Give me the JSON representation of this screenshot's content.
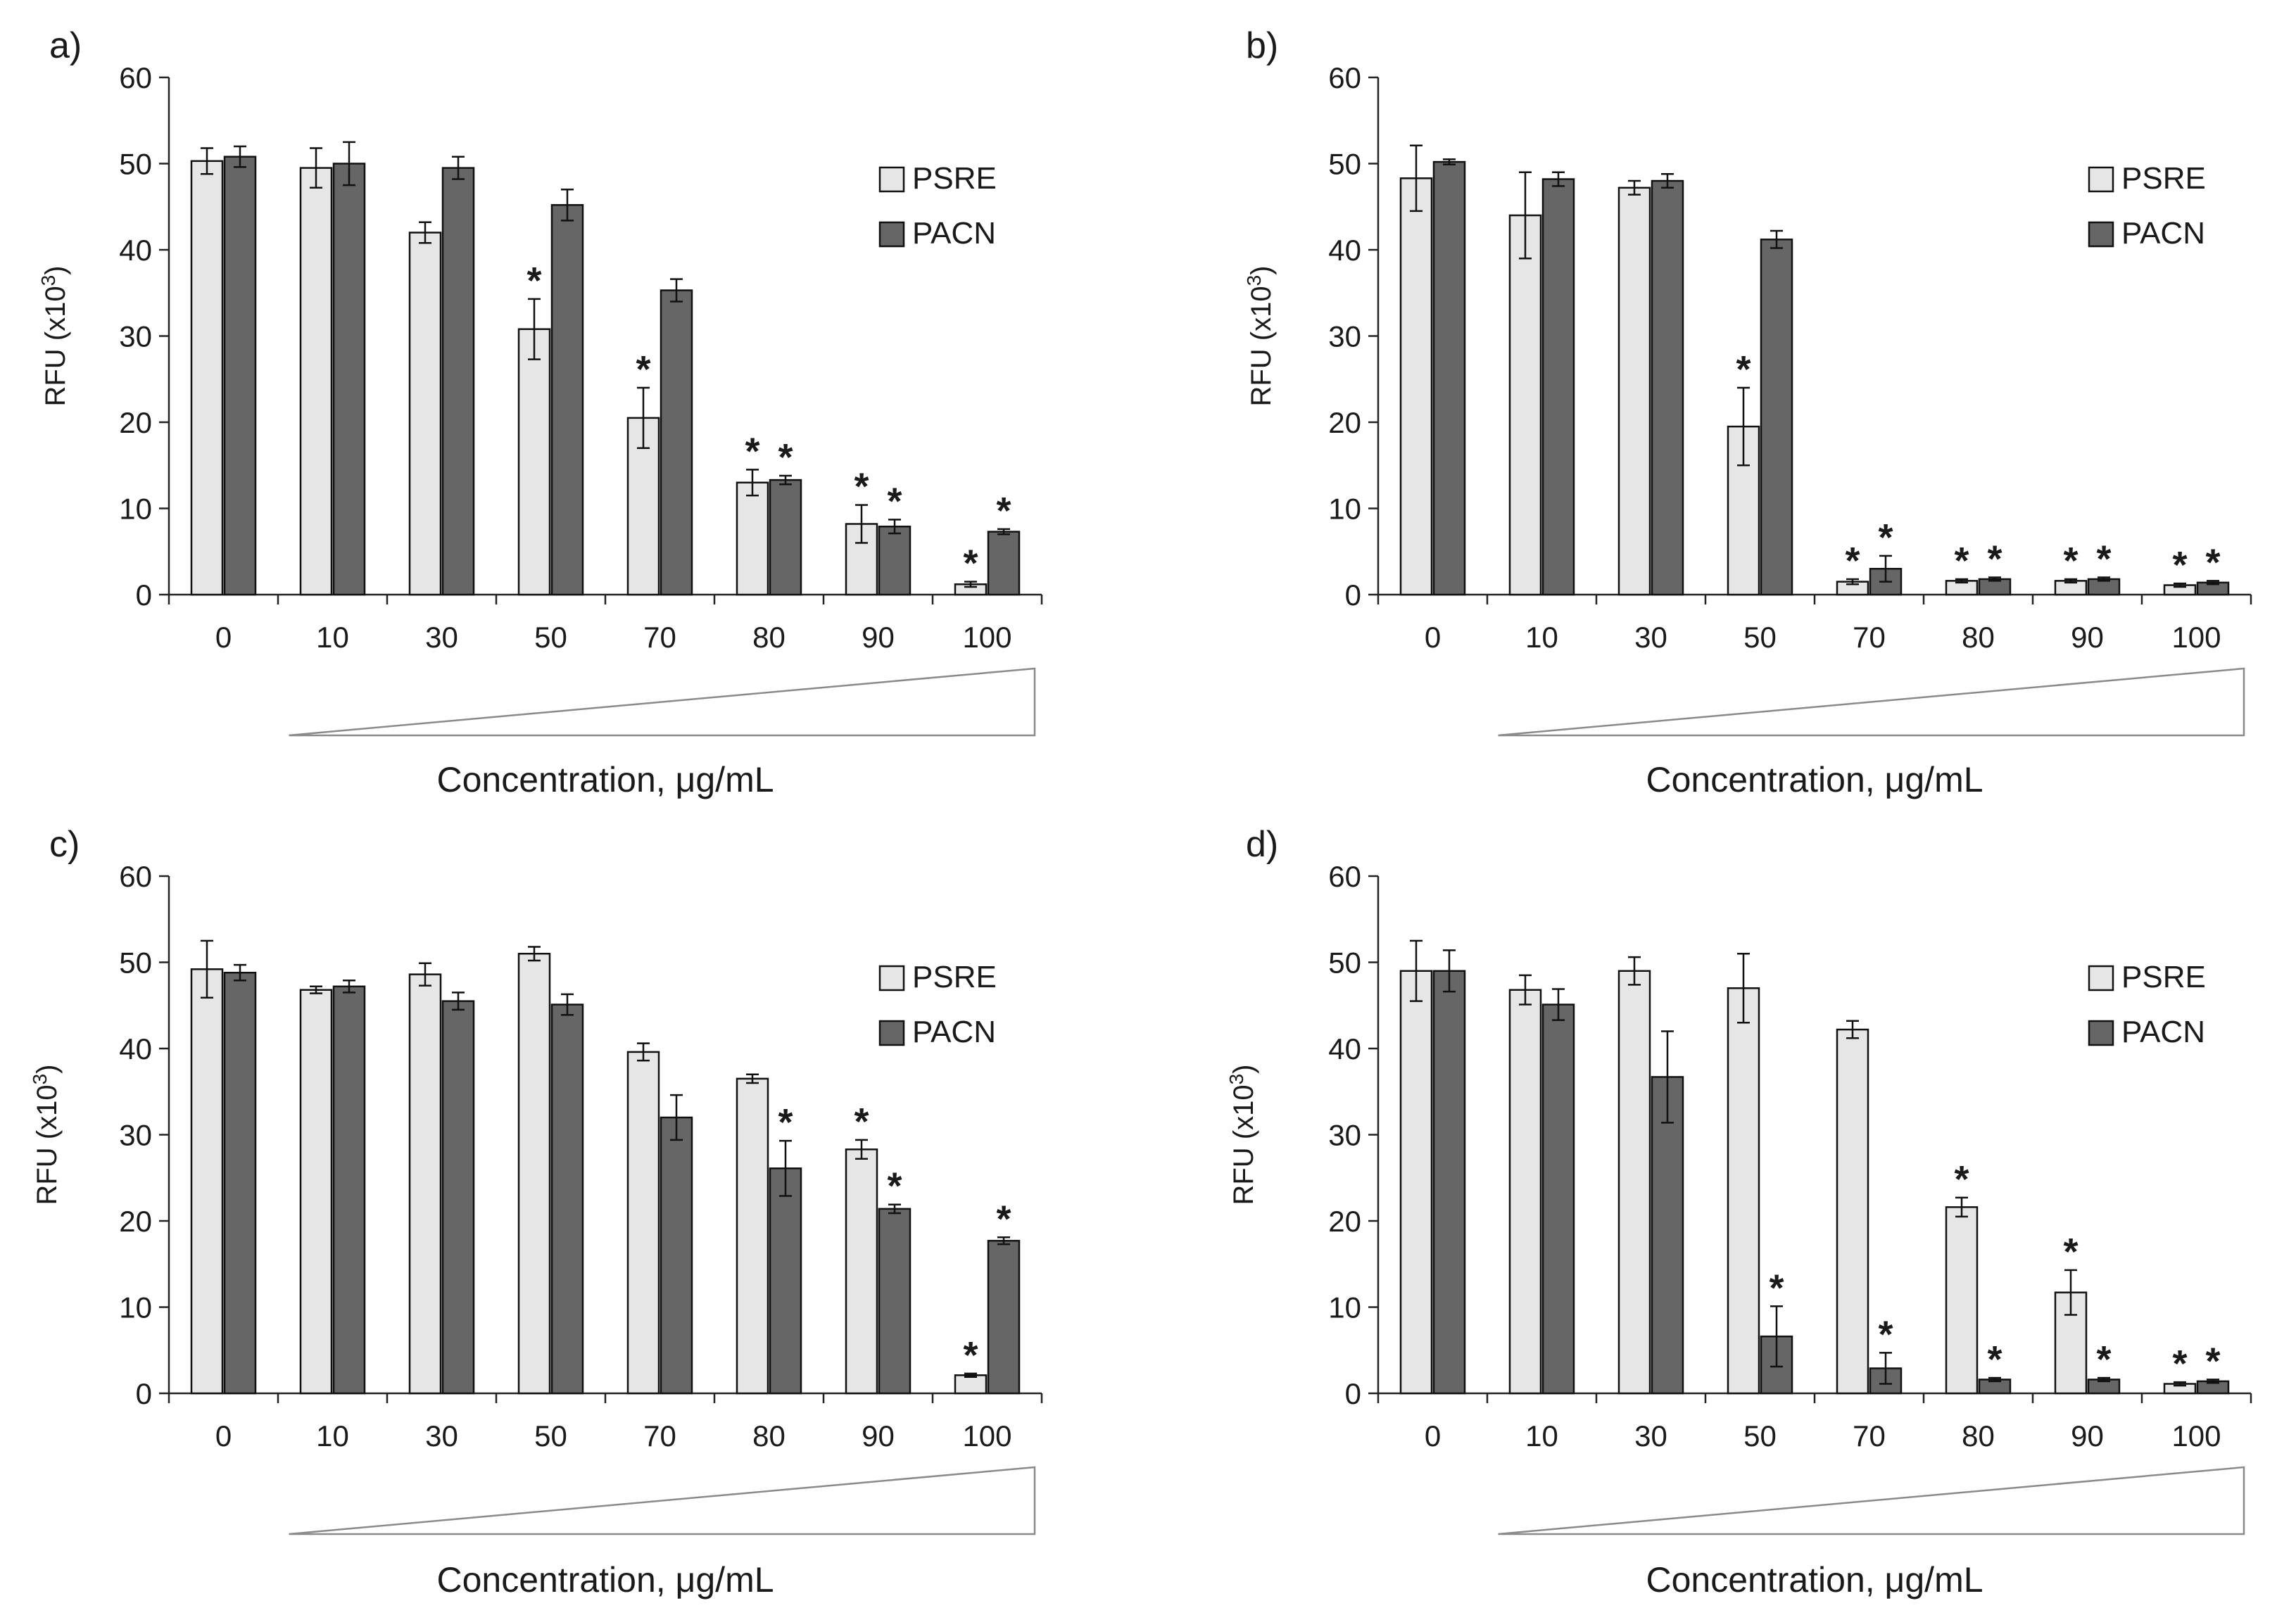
{
  "colors": {
    "psre": "#e6e6e6",
    "pacn": "#666666"
  },
  "chart_data": [
    {
      "type": "bar",
      "panel": "a)",
      "categories": [
        "0",
        "10",
        "30",
        "50",
        "70",
        "80",
        "90",
        "100"
      ],
      "ylabel": "RFU (x10",
      "ylabel_sup": "3",
      "ylabel_close": ")",
      "xlabel": "Concentration, μg/mL",
      "ylim": [
        0,
        60
      ],
      "yticks": [
        "0",
        "10",
        "20",
        "30",
        "40",
        "50",
        "60"
      ],
      "legend": [
        "PSRE",
        "PACN"
      ],
      "star": "*",
      "series": [
        {
          "name": "PSRE",
          "values": [
            50.3,
            49.5,
            42,
            30.8,
            20.5,
            13,
            8.2,
            1.2
          ],
          "errors": [
            1.5,
            2.3,
            1.2,
            3.5,
            3.5,
            1.5,
            2.2,
            0.3
          ],
          "sig": [
            false,
            false,
            false,
            true,
            true,
            true,
            true,
            true
          ]
        },
        {
          "name": "PACN",
          "values": [
            50.8,
            50,
            49.5,
            45.2,
            35.3,
            13.3,
            7.9,
            7.3
          ],
          "errors": [
            1.2,
            2.5,
            1.3,
            1.8,
            1.3,
            0.5,
            0.8,
            0.3
          ],
          "sig": [
            false,
            false,
            false,
            false,
            false,
            true,
            true,
            true
          ]
        }
      ]
    },
    {
      "type": "bar",
      "panel": "b)",
      "categories": [
        "0",
        "10",
        "30",
        "50",
        "70",
        "80",
        "90",
        "100"
      ],
      "ylabel": "RFU (x10",
      "ylabel_sup": "3",
      "ylabel_close": ")",
      "xlabel": "Concentration, μg/mL",
      "ylim": [
        0,
        60
      ],
      "yticks": [
        "0",
        "10",
        "20",
        "30",
        "40",
        "50",
        "60"
      ],
      "legend": [
        "PSRE",
        "PACN"
      ],
      "star": "*",
      "series": [
        {
          "name": "PSRE",
          "values": [
            48.3,
            44,
            47.2,
            19.5,
            1.5,
            1.6,
            1.6,
            1.1
          ],
          "errors": [
            3.8,
            5,
            0.8,
            4.5,
            0.3,
            0.2,
            0.2,
            0.2
          ],
          "sig": [
            false,
            false,
            false,
            true,
            true,
            true,
            true,
            true
          ]
        },
        {
          "name": "PACN",
          "values": [
            50.2,
            48.2,
            48,
            41.2,
            3,
            1.8,
            1.8,
            1.4
          ],
          "errors": [
            0.3,
            0.8,
            0.8,
            1.0,
            1.5,
            0.2,
            0.2,
            0.2
          ],
          "sig": [
            false,
            false,
            false,
            false,
            true,
            true,
            true,
            true
          ]
        }
      ]
    },
    {
      "type": "bar",
      "panel": "c)",
      "categories": [
        "0",
        "10",
        "30",
        "50",
        "70",
        "80",
        "90",
        "100"
      ],
      "ylabel": "RFU (x10",
      "ylabel_sup": "3",
      "ylabel_close": ")",
      "xlabel": "Concentration, μg/mL",
      "ylim": [
        0,
        60
      ],
      "yticks": [
        "0",
        "10",
        "20",
        "30",
        "40",
        "50",
        "60"
      ],
      "legend": [
        "PSRE",
        "PACN"
      ],
      "star": "*",
      "series": [
        {
          "name": "PSRE",
          "values": [
            49.2,
            46.8,
            48.6,
            51,
            39.6,
            36.5,
            28.3,
            2.1
          ],
          "errors": [
            3.3,
            0.4,
            1.3,
            0.8,
            1.0,
            0.5,
            1.1,
            0.2
          ],
          "sig": [
            false,
            false,
            false,
            false,
            false,
            false,
            true,
            true
          ]
        },
        {
          "name": "PACN",
          "values": [
            48.8,
            47.2,
            45.5,
            45.1,
            32,
            26.1,
            21.4,
            17.7
          ],
          "errors": [
            0.9,
            0.7,
            1.0,
            1.2,
            2.6,
            3.2,
            0.5,
            0.4
          ],
          "sig": [
            false,
            false,
            false,
            false,
            false,
            true,
            true,
            true
          ]
        }
      ]
    },
    {
      "type": "bar",
      "panel": "d)",
      "categories": [
        "0",
        "10",
        "30",
        "50",
        "70",
        "80",
        "90",
        "100"
      ],
      "ylabel": "RFU (x10",
      "ylabel_sup": "3",
      "ylabel_close": ")",
      "xlabel": "Concentration, μg/mL",
      "ylim": [
        0,
        60
      ],
      "yticks": [
        "0",
        "10",
        "20",
        "30",
        "40",
        "50",
        "60"
      ],
      "legend": [
        "PSRE",
        "PACN"
      ],
      "star": "*",
      "series": [
        {
          "name": "PSRE",
          "values": [
            49,
            46.8,
            49,
            47,
            42.2,
            21.6,
            11.7,
            1.1
          ],
          "errors": [
            3.5,
            1.7,
            1.6,
            4.0,
            1.0,
            1.1,
            2.6,
            0.2
          ],
          "sig": [
            false,
            false,
            false,
            false,
            false,
            true,
            true,
            true
          ]
        },
        {
          "name": "PACN",
          "values": [
            49,
            45.1,
            36.7,
            6.6,
            2.9,
            1.6,
            1.6,
            1.4
          ],
          "errors": [
            2.4,
            1.8,
            5.3,
            3.5,
            1.8,
            0.2,
            0.2,
            0.2
          ],
          "sig": [
            false,
            false,
            false,
            true,
            true,
            true,
            true,
            true
          ]
        }
      ]
    }
  ]
}
